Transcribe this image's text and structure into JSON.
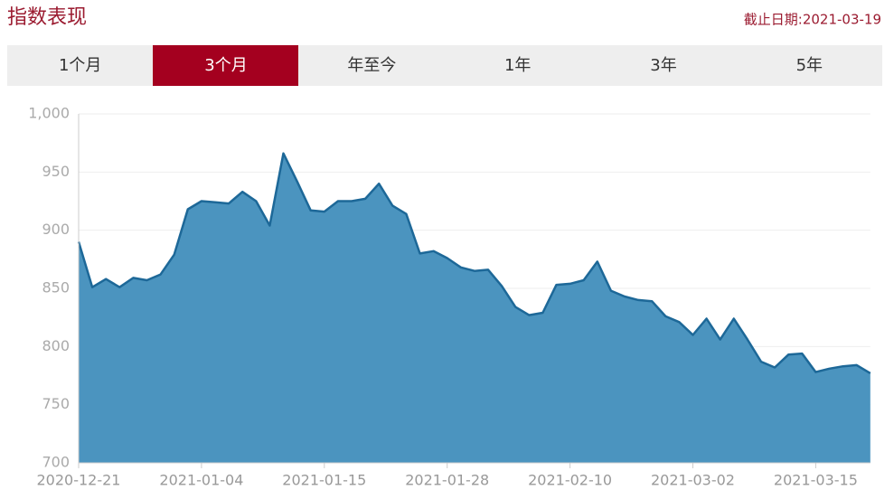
{
  "header": {
    "title": "指数表现",
    "date": "截止日期:2021-03-19"
  },
  "tabs": [
    "1个月",
    "3个月",
    "年至今",
    "1年",
    "3年",
    "5年"
  ],
  "active_tab": 1,
  "chart_data": {
    "type": "area",
    "categories": [
      "2020-12-21",
      null,
      null,
      null,
      null,
      null,
      null,
      null,
      null,
      "2021-01-04",
      null,
      null,
      null,
      null,
      null,
      null,
      null,
      null,
      "2021-01-15",
      null,
      null,
      null,
      null,
      null,
      null,
      null,
      null,
      "2021-01-28",
      null,
      null,
      null,
      null,
      null,
      null,
      null,
      null,
      "2021-02-10",
      null,
      null,
      null,
      null,
      null,
      null,
      null,
      null,
      "2021-03-02",
      null,
      null,
      null,
      null,
      null,
      null,
      null,
      null,
      "2021-03-15",
      null,
      null,
      null,
      null
    ],
    "values": [
      890,
      851,
      858,
      851,
      859,
      857,
      862,
      879,
      918,
      925,
      924,
      923,
      933,
      925,
      904,
      966,
      942,
      917,
      916,
      925,
      925,
      927,
      940,
      921,
      914,
      880,
      882,
      876,
      868,
      865,
      866,
      852,
      834,
      827,
      829,
      853,
      854,
      857,
      873,
      848,
      843,
      840,
      839,
      826,
      821,
      810,
      824,
      806,
      824,
      806,
      787,
      782,
      793,
      794,
      778,
      781,
      783,
      784,
      777
    ],
    "color": "#4b94bf",
    "line_color": "#1d6898",
    "ylim": [
      700,
      1000
    ],
    "yticks": [
      700,
      750,
      800,
      850,
      900,
      950,
      {
        "value": 1000,
        "label": "1,000"
      }
    ],
    "grid": true
  }
}
